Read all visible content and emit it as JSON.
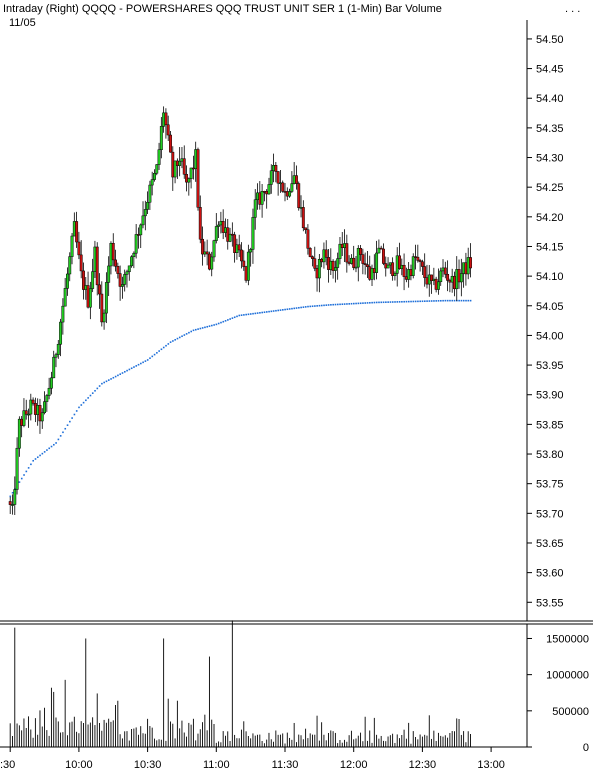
{
  "header": {
    "title": "Intraday   (Right)  QQQQ - POWERSHARES QQQ TRUST UNIT SER 1  (1-Min)  Bar  Volume",
    "date": "11/05",
    "menu_dots": ". . ."
  },
  "colors": {
    "up": "#22cc22",
    "down": "#cc1111",
    "vwap": "#1e6fd9",
    "volume": "#000000",
    "axis": "#000000"
  },
  "chart_data": [
    {
      "type": "candlestick",
      "title": "QQQQ - POWERSHARES QQQ TRUST UNIT SER 1 (1-Min)",
      "x_ticks": [
        ":30",
        "10:00",
        "10:30",
        "11:00",
        "11:30",
        "12:00",
        "12:30",
        "13:00"
      ],
      "y_ticks": [
        "54.50",
        "54.45",
        "54.40",
        "54.35",
        "54.30",
        "54.25",
        "54.20",
        "54.15",
        "54.10",
        "54.05",
        "54.00",
        "53.95",
        "53.90",
        "53.85",
        "53.80",
        "53.75",
        "53.70",
        "53.65",
        "53.60",
        "53.55"
      ],
      "ylim": [
        53.51,
        54.51
      ],
      "xlim": [
        "09:30",
        "13:00"
      ],
      "grid": false,
      "anchors": [
        [
          "09:30",
          53.72
        ],
        [
          "09:32",
          53.7
        ],
        [
          "09:35",
          53.85
        ],
        [
          "09:40",
          53.88
        ],
        [
          "09:45",
          53.86
        ],
        [
          "09:50",
          53.95
        ],
        [
          "09:54",
          54.05
        ],
        [
          "09:59",
          54.18
        ],
        [
          "10:02",
          54.1
        ],
        [
          "10:05",
          54.06
        ],
        [
          "10:08",
          54.14
        ],
        [
          "10:11",
          54.02
        ],
        [
          "10:15",
          54.15
        ],
        [
          "10:20",
          54.08
        ],
        [
          "10:25",
          54.15
        ],
        [
          "10:30",
          54.22
        ],
        [
          "10:35",
          54.28
        ],
        [
          "10:38",
          54.38
        ],
        [
          "10:42",
          54.27
        ],
        [
          "10:45",
          54.3
        ],
        [
          "10:48",
          54.25
        ],
        [
          "10:52",
          54.3
        ],
        [
          "10:54",
          54.15
        ],
        [
          "10:58",
          54.12
        ],
        [
          "11:02",
          54.2
        ],
        [
          "11:06",
          54.17
        ],
        [
          "11:10",
          54.14
        ],
        [
          "11:14",
          54.1
        ],
        [
          "11:18",
          54.22
        ],
        [
          "11:23",
          54.25
        ],
        [
          "11:27",
          54.28
        ],
        [
          "11:31",
          54.24
        ],
        [
          "11:35",
          54.27
        ],
        [
          "11:40",
          54.17
        ],
        [
          "11:44",
          54.1
        ],
        [
          "11:48",
          54.14
        ],
        [
          "11:52",
          54.11
        ],
        [
          "11:56",
          54.15
        ],
        [
          "12:00",
          54.12
        ],
        [
          "12:04",
          54.14
        ],
        [
          "12:08",
          54.1
        ],
        [
          "12:12",
          54.14
        ],
        [
          "12:16",
          54.11
        ],
        [
          "12:20",
          54.12
        ],
        [
          "12:24",
          54.1
        ],
        [
          "12:28",
          54.13
        ],
        [
          "12:32",
          54.1
        ],
        [
          "12:36",
          54.08
        ],
        [
          "12:40",
          54.11
        ],
        [
          "12:44",
          54.09
        ],
        [
          "12:47",
          54.1
        ],
        [
          "12:51",
          54.12
        ]
      ],
      "vwap_anchors": [
        [
          "09:30",
          53.73
        ],
        [
          "09:40",
          53.79
        ],
        [
          "09:50",
          53.82
        ],
        [
          "10:00",
          53.88
        ],
        [
          "10:10",
          53.92
        ],
        [
          "10:20",
          53.94
        ],
        [
          "10:30",
          53.96
        ],
        [
          "10:40",
          53.99
        ],
        [
          "10:50",
          54.01
        ],
        [
          "11:00",
          54.02
        ],
        [
          "11:10",
          54.035
        ],
        [
          "11:20",
          54.04
        ],
        [
          "11:30",
          54.045
        ],
        [
          "11:40",
          54.05
        ],
        [
          "11:50",
          54.053
        ],
        [
          "12:00",
          54.055
        ],
        [
          "12:10",
          54.057
        ],
        [
          "12:20",
          54.058
        ],
        [
          "12:30",
          54.059
        ],
        [
          "12:40",
          54.06
        ],
        [
          "12:51",
          54.06
        ]
      ]
    },
    {
      "type": "bar",
      "title": "Volume",
      "y_ticks": [
        "1500000",
        "1000000",
        "500000",
        "0"
      ],
      "ylim": [
        0,
        1700000
      ],
      "notable_spikes": [
        [
          "09:32",
          1650000
        ],
        [
          "10:03",
          1500000
        ],
        [
          "10:37",
          1500000
        ],
        [
          "10:57",
          1250000
        ],
        [
          "11:07",
          1750000
        ]
      ]
    }
  ]
}
